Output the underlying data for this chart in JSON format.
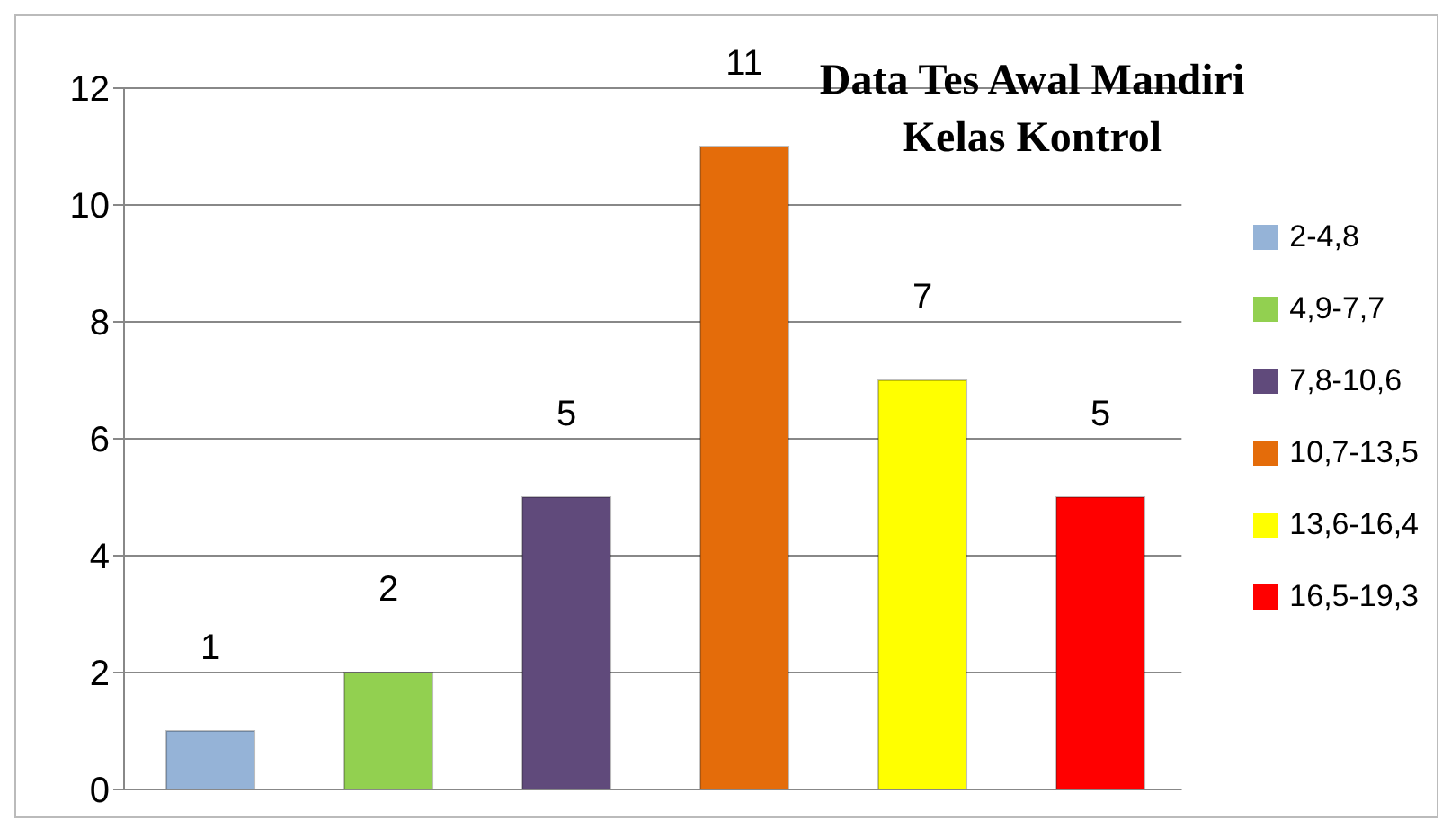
{
  "chart_data": {
    "type": "bar",
    "title": "Data Tes Awal Mandiri\nKelas Kontrol",
    "categories": [
      null
    ],
    "series": [
      {
        "name": "2-4,8",
        "color": "#95b3d7",
        "values": [
          1
        ]
      },
      {
        "name": "4,9-7,7",
        "color": "#92d050",
        "values": [
          2
        ]
      },
      {
        "name": "7,8-10,6",
        "color": "#604a7b",
        "values": [
          5
        ]
      },
      {
        "name": "10,7-13,5",
        "color": "#e46c0a",
        "values": [
          11
        ]
      },
      {
        "name": "13,6-16,4",
        "color": "#ffff00",
        "values": [
          7
        ]
      },
      {
        "name": "16,5-19,3",
        "color": "#ff0000",
        "values": [
          5
        ]
      }
    ],
    "ylim": [
      0,
      12
    ],
    "yticks": [
      0,
      2,
      4,
      6,
      8,
      10,
      12
    ],
    "grid": "y",
    "legend": "right",
    "data_labels": true
  }
}
